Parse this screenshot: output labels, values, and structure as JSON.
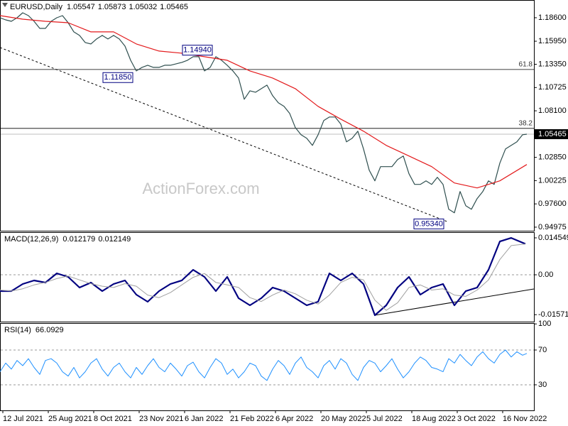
{
  "chart_data": [
    {
      "type": "line",
      "title": "EURUSD,Daily",
      "title_values": [
        1.05547,
        1.05873,
        1.05032,
        1.05465
      ],
      "xlim": [
        0,
        376
      ],
      "ylim": [
        0.9457,
        1.206
      ],
      "yticks": [
        {
          "value": 1.186,
          "label": "1.18600"
        },
        {
          "value": 1.1595,
          "label": "1.15950"
        },
        {
          "value": 1.1335,
          "label": "1.13350"
        },
        {
          "value": 1.10725,
          "label": "1.10725"
        },
        {
          "value": 1.081,
          "label": "1.08100"
        },
        {
          "value": 1.0285,
          "label": "1.02850"
        },
        {
          "value": 1.00225,
          "label": "1.00225"
        },
        {
          "value": 0.976,
          "label": "0.97600"
        },
        {
          "value": 0.94975,
          "label": "0.94975"
        }
      ],
      "last_price": 1.05465,
      "watermark": "ActionForex.com",
      "series": [
        {
          "color": "#2f4f4f",
          "x": [
            0,
            4,
            8,
            12,
            16,
            20,
            24,
            28,
            32,
            36,
            40,
            44,
            48,
            52,
            56,
            60,
            64,
            68,
            72,
            76,
            80,
            84,
            88,
            92,
            96,
            100,
            104,
            108,
            112,
            116,
            120,
            124,
            128,
            132,
            136,
            140,
            144,
            148,
            152,
            156,
            160,
            164,
            168,
            172,
            176,
            180,
            184,
            188,
            192,
            196,
            200,
            204,
            208,
            212,
            216,
            220,
            224,
            228,
            232,
            236,
            240,
            244,
            248,
            252,
            256,
            260,
            264,
            268,
            272,
            276,
            280,
            284,
            288,
            292,
            296,
            300,
            304,
            308,
            312,
            316,
            320,
            324,
            328,
            332,
            336,
            340,
            344,
            348,
            352,
            356,
            360,
            364,
            368,
            371
          ],
          "values": [
            1.186,
            1.1836,
            1.182,
            1.186,
            1.1916,
            1.1884,
            1.182,
            1.174,
            1.174,
            1.182,
            1.186,
            1.1884,
            1.1804,
            1.17,
            1.166,
            1.158,
            1.1564,
            1.162,
            1.166,
            1.162,
            1.166,
            1.162,
            1.154,
            1.138,
            1.126,
            1.13,
            1.1324,
            1.13,
            1.13,
            1.1324,
            1.1324,
            1.134,
            1.1356,
            1.138,
            1.142,
            1.142,
            1.126,
            1.13,
            1.142,
            1.138,
            1.1324,
            1.126,
            1.118,
            1.094,
            1.1036,
            1.102,
            1.106,
            1.11,
            1.098,
            1.09,
            1.086,
            1.078,
            1.062,
            1.054,
            1.05,
            1.042,
            1.054,
            1.07,
            1.074,
            1.074,
            1.066,
            1.046,
            1.05,
            1.058,
            1.038,
            1.014,
            1.002,
            1.018,
            1.018,
            1.018,
            1.026,
            1.03,
            1.01,
            0.998,
            0.998,
            1.002,
            0.998,
            1.006,
            0.998,
            0.97,
            0.966,
            0.99,
            0.974,
            0.97,
            0.982,
            0.99,
            1.002,
            0.998,
            1.022,
            1.038,
            1.042,
            1.046,
            1.054,
            1.05465
          ]
        },
        {
          "color": "#e31a1c",
          "x": [
            0,
            16,
            32,
            48,
            64,
            80,
            96,
            112,
            128,
            144,
            160,
            176,
            192,
            208,
            224,
            240,
            256,
            272,
            288,
            304,
            320,
            336,
            352,
            371
          ],
          "values": [
            1.1884,
            1.1844,
            1.182,
            1.1804,
            1.17,
            1.17,
            1.1564,
            1.1484,
            1.146,
            1.142,
            1.138,
            1.126,
            1.118,
            1.106,
            1.086,
            1.0716,
            1.058,
            1.042,
            1.03,
            1.018,
            0.9996,
            0.994,
            1.002,
            1.0204
          ]
        }
      ],
      "annotations": [
        {
          "x": 139,
          "value": 1.1494,
          "label": "1.14940"
        },
        {
          "x": 83,
          "value": 1.1185,
          "label": "1.11850"
        },
        {
          "x": 302,
          "value": 0.9534,
          "label": "0.95340"
        }
      ],
      "fib_levels": [
        {
          "level": 61.8,
          "price": 1.1276
        },
        {
          "level": 38.2,
          "price": 1.0612
        }
      ],
      "trendline": {
        "x": [
          0,
          315
        ],
        "values": [
          1.1524,
          0.956
        ],
        "dashed": true
      }
    },
    {
      "type": "line",
      "title": "MACD(12,26,9)",
      "title_values": [
        0.012179,
        0.012149
      ],
      "xlim": [
        0,
        376
      ],
      "ylim": [
        -0.01845,
        0.01679
      ],
      "yticks": [
        0.014549,
        {
          "value": 0,
          "label": "0.00"
        },
        -0.015712
      ],
      "dashed_levels": [
        0
      ],
      "series": [
        {
          "color": "#000080",
          "width": 2.2,
          "x": [
            0,
            8,
            16,
            24,
            32,
            40,
            48,
            56,
            64,
            72,
            80,
            88,
            96,
            104,
            112,
            120,
            128,
            136,
            144,
            152,
            160,
            168,
            176,
            184,
            192,
            200,
            208,
            216,
            224,
            232,
            240,
            248,
            256,
            264,
            272,
            280,
            288,
            296,
            304,
            312,
            320,
            328,
            336,
            344,
            352,
            360,
            370
          ],
          "values": [
            -0.00643,
            -0.00643,
            -0.00363,
            -0.00224,
            -0.00307,
            0.00056,
            -0.00084,
            -0.00503,
            -0.00307,
            -0.00643,
            -0.00363,
            -0.00224,
            -0.00783,
            -0.01062,
            -0.00643,
            -0.00363,
            -0.00224,
            0.00196,
            -0.00084,
            -0.00643,
            -0.00084,
            -0.00922,
            -0.01202,
            -0.00922,
            -0.00503,
            -0.00643,
            -0.00922,
            -0.01202,
            -0.01062,
            0.00056,
            -0.00224,
            0.00056,
            -0.00363,
            -0.01593,
            -0.01202,
            -0.00503,
            -0.00084,
            -0.00783,
            -0.00503,
            -0.00363,
            -0.01202,
            -0.00643,
            -0.00503,
            0.00196,
            0.01314,
            0.01453,
            0.012179
          ]
        },
        {
          "color": "#a0a0a0",
          "width": 1,
          "x": [
            0,
            8,
            16,
            24,
            32,
            40,
            48,
            56,
            64,
            72,
            80,
            88,
            96,
            104,
            112,
            120,
            128,
            136,
            144,
            152,
            160,
            168,
            176,
            184,
            192,
            200,
            208,
            216,
            224,
            232,
            240,
            248,
            256,
            264,
            272,
            280,
            288,
            296,
            304,
            312,
            320,
            328,
            336,
            344,
            352,
            360,
            370
          ],
          "values": [
            -0.006,
            -0.0064,
            -0.0055,
            -0.004,
            -0.003,
            -0.0015,
            -0.0005,
            -0.002,
            -0.0035,
            -0.0045,
            -0.005,
            -0.0035,
            -0.0045,
            -0.008,
            -0.009,
            -0.007,
            -0.004,
            -0.001,
            0.0005,
            -0.003,
            -0.004,
            -0.005,
            -0.009,
            -0.0105,
            -0.008,
            -0.006,
            -0.0075,
            -0.01,
            -0.0115,
            -0.008,
            -0.003,
            -0.001,
            -0.002,
            -0.01,
            -0.014,
            -0.011,
            -0.005,
            -0.004,
            -0.006,
            -0.0055,
            -0.008,
            -0.0085,
            -0.006,
            -0.002,
            0.006,
            0.0115,
            0.012149
          ]
        }
      ],
      "trendline": {
        "x": [
          264,
          376
        ],
        "values": [
          -0.01593,
          -0.0056
        ],
        "dashed": false
      }
    },
    {
      "type": "line",
      "title": "RSI(14)",
      "title_values": [
        66.0929
      ],
      "xlim": [
        0,
        376
      ],
      "ylim": [
        0.6,
        101
      ],
      "yticks": [
        100,
        70,
        30
      ],
      "dashed_levels": [
        70,
        30
      ],
      "xticks": [
        {
          "value": 2,
          "label": "12 Jul 2021"
        },
        {
          "value": 34,
          "label": "25 Aug 2021"
        },
        {
          "value": 66,
          "label": "8 Oct 2021"
        },
        {
          "value": 98,
          "label": "23 Nov 2021"
        },
        {
          "value": 130,
          "label": "6 Jan 2022"
        },
        {
          "value": 162,
          "label": "21 Feb 2022"
        },
        {
          "value": 194,
          "label": "6 Apr 2022"
        },
        {
          "value": 226,
          "label": "20 May 2022"
        },
        {
          "value": 258,
          "label": "5 Jul 2022"
        },
        {
          "value": 290,
          "label": "18 Aug 2022"
        },
        {
          "value": 322,
          "label": "3 Oct 2022"
        },
        {
          "value": 354,
          "label": "16 Nov 2022"
        }
      ],
      "series": [
        {
          "color": "#1e90ff",
          "width": 1,
          "x": [
            0,
            4,
            8,
            12,
            16,
            20,
            24,
            28,
            32,
            36,
            40,
            44,
            48,
            52,
            56,
            60,
            64,
            68,
            72,
            76,
            80,
            84,
            88,
            92,
            96,
            100,
            104,
            108,
            112,
            116,
            120,
            124,
            128,
            132,
            136,
            140,
            144,
            148,
            152,
            156,
            160,
            164,
            168,
            172,
            176,
            180,
            184,
            188,
            192,
            196,
            200,
            204,
            208,
            212,
            216,
            220,
            224,
            228,
            232,
            236,
            240,
            244,
            248,
            252,
            256,
            260,
            264,
            268,
            272,
            276,
            280,
            284,
            288,
            292,
            296,
            300,
            304,
            308,
            312,
            316,
            320,
            324,
            328,
            332,
            336,
            340,
            344,
            348,
            352,
            356,
            360,
            364,
            368,
            371
          ],
          "values": [
            45,
            55,
            48,
            58,
            52,
            60,
            50,
            42,
            58,
            60,
            55,
            45,
            40,
            50,
            38,
            45,
            55,
            60,
            48,
            40,
            50,
            55,
            45,
            38,
            50,
            42,
            52,
            60,
            50,
            45,
            55,
            48,
            40,
            52,
            56,
            45,
            38,
            50,
            60,
            55,
            42,
            48,
            38,
            45,
            55,
            52,
            40,
            35,
            48,
            58,
            52,
            42,
            55,
            62,
            50,
            45,
            38,
            52,
            58,
            48,
            60,
            55,
            42,
            35,
            50,
            58,
            55,
            45,
            52,
            60,
            48,
            38,
            45,
            55,
            62,
            58,
            50,
            48,
            45,
            60,
            55,
            65,
            58,
            52,
            62,
            68,
            60,
            55,
            65,
            70,
            62,
            68,
            64,
            66.0929
          ]
        }
      ]
    }
  ]
}
